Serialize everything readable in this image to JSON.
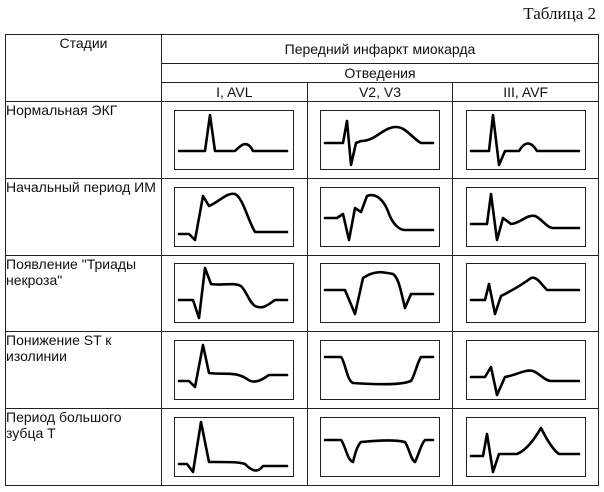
{
  "caption": "Таблица 2",
  "header": {
    "stages": "Стадии",
    "title": "Передний инфаркт миокарда",
    "leads_label": "Отведения",
    "leads": [
      "I, AVL",
      "V2, V3",
      "III, AVF"
    ]
  },
  "rows": [
    {
      "stage": "Нормальная ЭКГ"
    },
    {
      "stage": "Начальный период ИМ"
    },
    {
      "stage": "Появление \"Триады некроза\""
    },
    {
      "stage": "Понижение ST к изолинии"
    },
    {
      "stage": "Период большого зубца Т"
    }
  ]
}
